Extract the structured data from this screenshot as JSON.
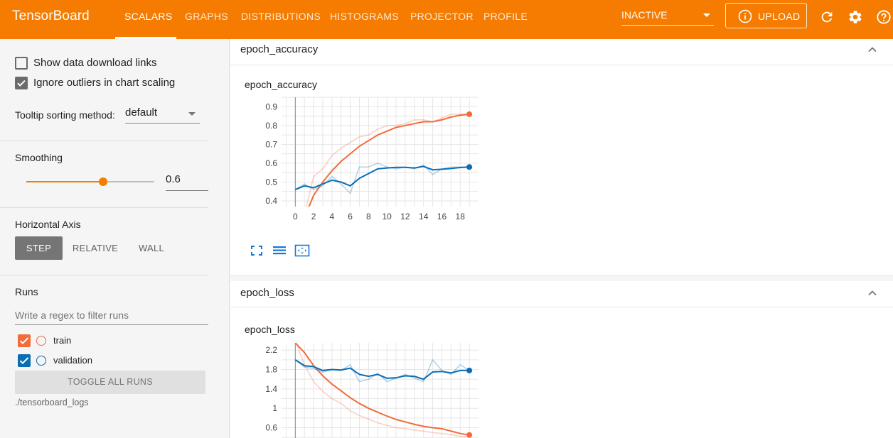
{
  "app": {
    "brand": "TensorBoard",
    "tabs": [
      {
        "label": "SCALARS",
        "active": true
      },
      {
        "label": "GRAPHS",
        "active": false
      },
      {
        "label": "DISTRIBUTIONS",
        "active": false
      },
      {
        "label": "HISTOGRAMS",
        "active": false
      },
      {
        "label": "PROJECTOR",
        "active": false
      },
      {
        "label": "PROFILE",
        "active": false
      }
    ],
    "status_select": "INACTIVE",
    "upload_label": "UPLOAD",
    "icons": [
      "refresh-icon",
      "settings-gear-icon",
      "help-icon"
    ],
    "accent_color": "#f57c00"
  },
  "sidebar": {
    "show_download_links": {
      "label": "Show data download links",
      "checked": false
    },
    "ignore_outliers": {
      "label": "Ignore outliers in chart scaling",
      "checked": true
    },
    "tooltip_sorting": {
      "label": "Tooltip sorting method:",
      "value": "default"
    },
    "smoothing": {
      "label": "Smoothing",
      "value": "0.6",
      "level": 0.6
    },
    "horizontal_axis": {
      "label": "Horizontal Axis",
      "options": [
        "STEP",
        "RELATIVE",
        "WALL"
      ],
      "selected": "STEP"
    },
    "runs": {
      "label": "Runs",
      "filter_placeholder": "Write a regex to filter runs",
      "items": [
        {
          "name": "train",
          "checked": true,
          "color": "#f26b3a"
        },
        {
          "name": "validation",
          "checked": true,
          "color": "#0b6db4"
        }
      ],
      "toggle_all_label": "TOGGLE ALL RUNS",
      "logdir": "./tensorboard_logs"
    }
  },
  "main": {
    "categories": [
      {
        "name": "epoch_accuracy",
        "card_title": "epoch_accuracy"
      },
      {
        "name": "epoch_loss",
        "card_title": "epoch_loss"
      }
    ]
  },
  "chart_data": [
    {
      "type": "line",
      "title": "epoch_accuracy",
      "xlabel": "",
      "ylabel": "",
      "xlim": [
        -1.5,
        20
      ],
      "ylim": [
        0.37,
        0.95
      ],
      "x_ticks": [
        "0",
        "2",
        "4",
        "6",
        "8",
        "10",
        "12",
        "14",
        "16",
        "18"
      ],
      "y_ticks": [
        "0.4",
        "0.5",
        "0.6",
        "0.7",
        "0.8",
        "0.9"
      ],
      "grid": true,
      "x": [
        0,
        1,
        2,
        3,
        4,
        5,
        6,
        7,
        8,
        9,
        10,
        11,
        12,
        13,
        14,
        15,
        16,
        17,
        18,
        19
      ],
      "series": [
        {
          "name": "train",
          "color": "#f26b3a",
          "raw": [
            0.22,
            0.33,
            0.53,
            0.57,
            0.64,
            0.68,
            0.71,
            0.74,
            0.75,
            0.78,
            0.8,
            0.8,
            0.81,
            0.83,
            0.83,
            0.82,
            0.84,
            0.86,
            0.86,
            0.86
          ],
          "smoothed": [
            0.2,
            0.31,
            0.43,
            0.5,
            0.56,
            0.61,
            0.65,
            0.69,
            0.72,
            0.75,
            0.77,
            0.79,
            0.8,
            0.81,
            0.82,
            0.82,
            0.83,
            0.845,
            0.855,
            0.86
          ]
        },
        {
          "name": "validation",
          "color": "#0b6db4",
          "raw": [
            0.46,
            0.49,
            0.46,
            0.48,
            0.53,
            0.49,
            0.44,
            0.58,
            0.58,
            0.6,
            0.58,
            0.57,
            0.58,
            0.57,
            0.59,
            0.54,
            0.57,
            0.58,
            0.58,
            0.58
          ],
          "smoothed": [
            0.46,
            0.48,
            0.47,
            0.49,
            0.51,
            0.5,
            0.48,
            0.52,
            0.545,
            0.57,
            0.575,
            0.578,
            0.578,
            0.575,
            0.583,
            0.565,
            0.568,
            0.572,
            0.577,
            0.58
          ]
        }
      ]
    },
    {
      "type": "line",
      "title": "epoch_loss",
      "xlabel": "",
      "ylabel": "",
      "xlim": [
        -1.5,
        20
      ],
      "ylim": [
        0.3,
        2.35
      ],
      "x_ticks": [],
      "y_ticks": [
        "0.6",
        "1",
        "1.4",
        "1.8",
        "2.2"
      ],
      "grid": true,
      "x": [
        0,
        1,
        2,
        3,
        4,
        5,
        6,
        7,
        8,
        9,
        10,
        11,
        12,
        13,
        14,
        15,
        16,
        17,
        18,
        19
      ],
      "series": [
        {
          "name": "train",
          "color": "#f26b3a",
          "raw": [
            2.4,
            1.9,
            1.55,
            1.35,
            1.2,
            1.1,
            0.95,
            0.85,
            0.78,
            0.7,
            0.65,
            0.6,
            0.58,
            0.55,
            0.53,
            0.5,
            0.48,
            0.46,
            0.42,
            0.42
          ],
          "smoothed": [
            2.35,
            2.15,
            1.88,
            1.67,
            1.5,
            1.36,
            1.22,
            1.1,
            1.0,
            0.92,
            0.84,
            0.77,
            0.72,
            0.67,
            0.63,
            0.6,
            0.58,
            0.53,
            0.48,
            0.45
          ]
        },
        {
          "name": "validation",
          "color": "#0b6db4",
          "raw": [
            2.0,
            1.85,
            1.82,
            1.75,
            1.8,
            1.78,
            1.9,
            1.55,
            1.6,
            1.72,
            1.55,
            1.62,
            1.7,
            1.62,
            1.55,
            2.0,
            1.78,
            1.7,
            1.9,
            1.78
          ],
          "smoothed": [
            2.0,
            1.88,
            1.86,
            1.78,
            1.8,
            1.79,
            1.83,
            1.7,
            1.66,
            1.7,
            1.62,
            1.63,
            1.67,
            1.66,
            1.6,
            1.75,
            1.76,
            1.73,
            1.78,
            1.78
          ]
        }
      ]
    }
  ]
}
